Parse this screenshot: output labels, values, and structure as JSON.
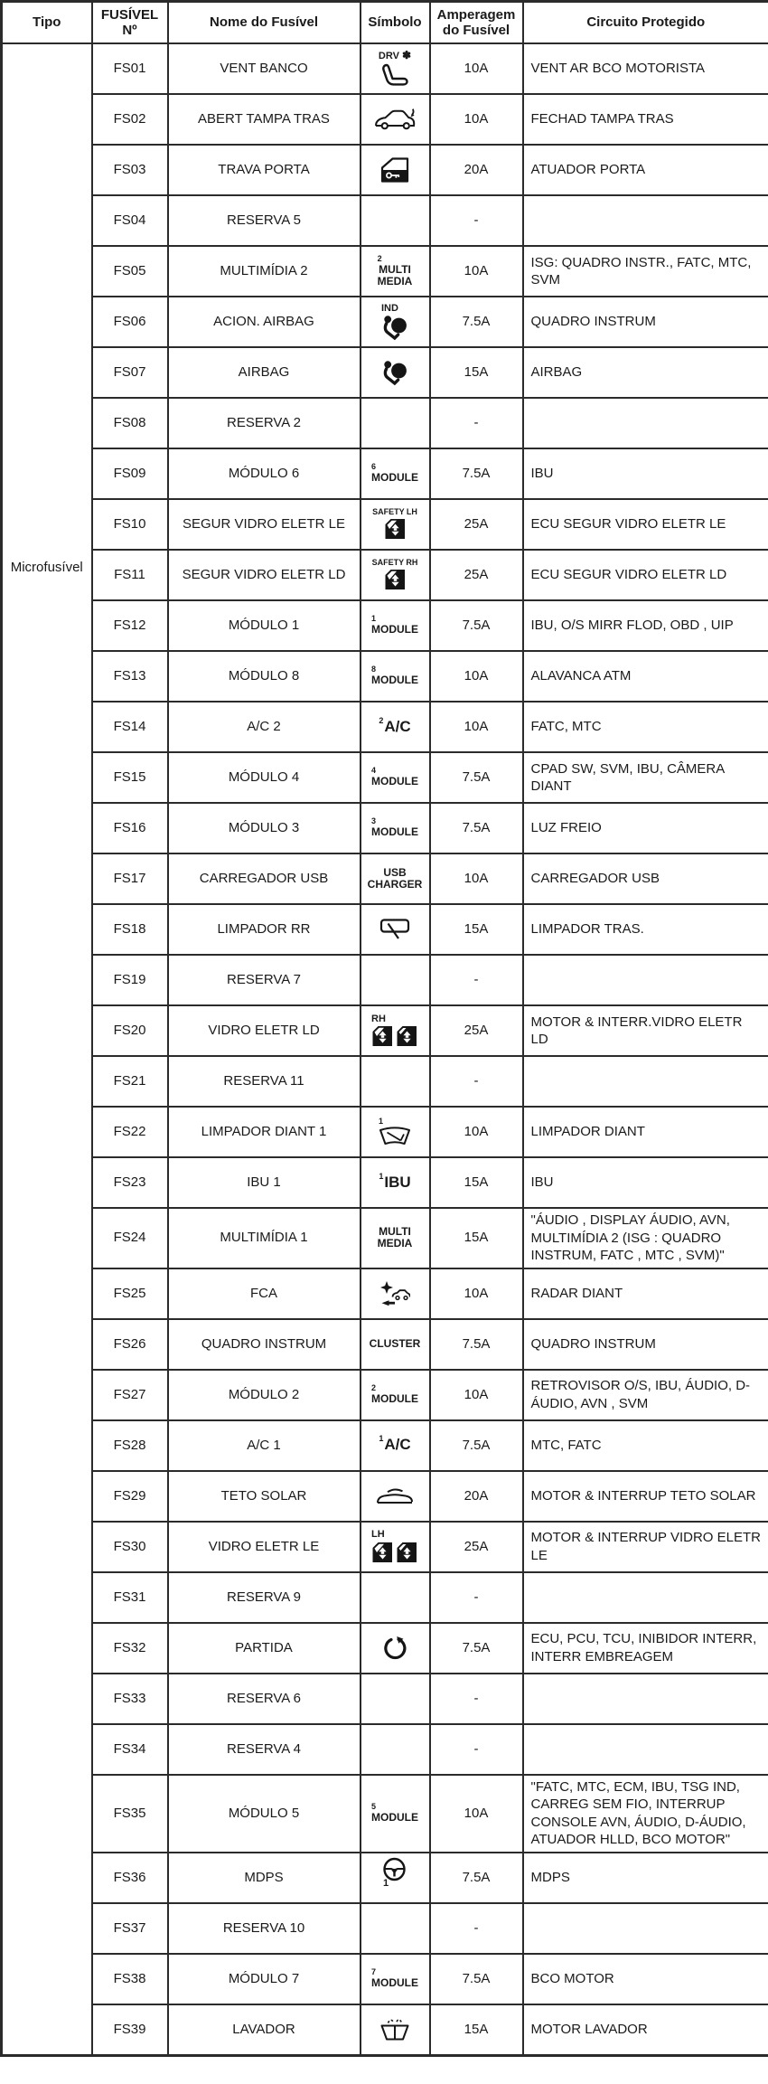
{
  "header": {
    "columns": [
      "Tipo",
      "FUSÍVEL Nº",
      "Nome do Fusível",
      "Símbolo",
      "Amperagem do Fusível",
      "Circuito Protegido"
    ]
  },
  "tipo_label": "Microfusível",
  "colors": {
    "border": "#2b2b2b",
    "text": "#1a1a1a",
    "icon": "#151515"
  },
  "rows": [
    {
      "fuse": "FS01",
      "name": "VENT BANCO",
      "symbol": {
        "icon": "seat-ventilation-icon",
        "label": "DRV",
        "fan": true
      },
      "amp": "10A",
      "circuit": "VENT AR BCO MOTORISTA"
    },
    {
      "fuse": "FS02",
      "name": "ABERT TAMPA TRAS",
      "symbol": {
        "icon": "tailgate-open-icon"
      },
      "amp": "10A",
      "circuit": "FECHAD TAMPA TRAS"
    },
    {
      "fuse": "FS03",
      "name": "TRAVA PORTA",
      "symbol": {
        "icon": "door-lock-icon"
      },
      "amp": "20A",
      "circuit": "ATUADOR PORTA"
    },
    {
      "fuse": "FS04",
      "name": "RESERVA 5",
      "symbol": null,
      "amp": "-",
      "circuit": ""
    },
    {
      "fuse": "FS05",
      "name": "MULTIMÍDIA 2",
      "symbol": {
        "sup": "2",
        "lines": [
          "MULTI",
          "MEDIA"
        ]
      },
      "amp": "10A",
      "circuit": "ISG: QUADRO INSTR., FATC, MTC, SVM"
    },
    {
      "fuse": "FS06",
      "name": "ACION. AIRBAG",
      "symbol": {
        "icon": "airbag-icon",
        "label": "IND"
      },
      "amp": "7.5A",
      "circuit": "QUADRO INSTRUM"
    },
    {
      "fuse": "FS07",
      "name": "AIRBAG",
      "symbol": {
        "icon": "airbag-icon"
      },
      "amp": "15A",
      "circuit": "AIRBAG"
    },
    {
      "fuse": "FS08",
      "name": "RESERVA 2",
      "symbol": null,
      "amp": "-",
      "circuit": ""
    },
    {
      "fuse": "FS09",
      "name": "MÓDULO 6",
      "symbol": {
        "sup": "6",
        "lines": [
          "MODULE"
        ]
      },
      "amp": "7.5A",
      "circuit": "IBU"
    },
    {
      "fuse": "FS10",
      "name": "SEGUR VIDRO ELETR LE",
      "symbol": {
        "icon": "window-safety-icon",
        "label": "SAFETY LH"
      },
      "amp": "25A",
      "circuit": "ECU SEGUR VIDRO ELETR LE"
    },
    {
      "fuse": "FS11",
      "name": "SEGUR VIDRO ELETR LD",
      "symbol": {
        "icon": "window-safety-icon",
        "label": "SAFETY RH"
      },
      "amp": "25A",
      "circuit": "ECU SEGUR VIDRO ELETR LD"
    },
    {
      "fuse": "FS12",
      "name": "MÓDULO 1",
      "symbol": {
        "sup": "1",
        "lines": [
          "MODULE"
        ]
      },
      "amp": "7.5A",
      "circuit": "IBU, O/S MIRR FLOD, OBD , UIP"
    },
    {
      "fuse": "FS13",
      "name": "MÓDULO 8",
      "symbol": {
        "sup": "8",
        "lines": [
          "MODULE"
        ]
      },
      "amp": "10A",
      "circuit": "ALAVANCA ATM"
    },
    {
      "fuse": "FS14",
      "name": "A/C 2",
      "symbol": {
        "sup": "2",
        "big": "A/C"
      },
      "amp": "10A",
      "circuit": "FATC, MTC"
    },
    {
      "fuse": "FS15",
      "name": "MÓDULO 4",
      "symbol": {
        "sup": "4",
        "lines": [
          "MODULE"
        ]
      },
      "amp": "7.5A",
      "circuit": "CPAD SW, SVM, IBU, CÂMERA DIANT"
    },
    {
      "fuse": "FS16",
      "name": "MÓDULO 3",
      "symbol": {
        "sup": "3",
        "lines": [
          "MODULE"
        ]
      },
      "amp": "7.5A",
      "circuit": "LUZ FREIO"
    },
    {
      "fuse": "FS17",
      "name": "CARREGADOR USB",
      "symbol": {
        "lines": [
          "USB",
          "CHARGER"
        ]
      },
      "amp": "10A",
      "circuit": "CARREGADOR USB"
    },
    {
      "fuse": "FS18",
      "name": "LIMPADOR RR",
      "symbol": {
        "icon": "rear-wiper-icon"
      },
      "amp": "15A",
      "circuit": "LIMPADOR TRAS."
    },
    {
      "fuse": "FS19",
      "name": "RESERVA 7",
      "symbol": null,
      "amp": "-",
      "circuit": ""
    },
    {
      "fuse": "FS20",
      "name": "VIDRO ELETR LD",
      "symbol": {
        "icon": "window-lift-pair-icon",
        "label": "RH"
      },
      "amp": "25A",
      "circuit": "MOTOR & INTERR.VIDRO ELETR LD"
    },
    {
      "fuse": "FS21",
      "name": "RESERVA 11",
      "symbol": null,
      "amp": "-",
      "circuit": ""
    },
    {
      "fuse": "FS22",
      "name": "LIMPADOR DIANT 1",
      "symbol": {
        "sup": "1",
        "icon": "front-wiper-icon"
      },
      "amp": "10A",
      "circuit": "LIMPADOR DIANT"
    },
    {
      "fuse": "FS23",
      "name": "IBU 1",
      "symbol": {
        "sup": "1",
        "big": "IBU"
      },
      "amp": "15A",
      "circuit": "IBU"
    },
    {
      "fuse": "FS24",
      "name": "MULTIMÍDIA 1",
      "symbol": {
        "lines": [
          "MULTI",
          "MEDIA"
        ]
      },
      "amp": "15A",
      "circuit": "\"ÁUDIO , DISPLAY ÁUDIO, AVN, MULTIMÍDIA 2 (ISG : QUADRO INSTRUM, FATC , MTC , SVM)\""
    },
    {
      "fuse": "FS25",
      "name": "FCA",
      "symbol": {
        "icon": "fca-collision-icon"
      },
      "amp": "10A",
      "circuit": "RADAR DIANT"
    },
    {
      "fuse": "FS26",
      "name": "QUADRO INSTRUM",
      "symbol": {
        "lines": [
          "CLUSTER"
        ]
      },
      "amp": "7.5A",
      "circuit": "QUADRO INSTRUM"
    },
    {
      "fuse": "FS27",
      "name": "MÓDULO 2",
      "symbol": {
        "sup": "2",
        "lines": [
          "MODULE"
        ]
      },
      "amp": "10A",
      "circuit": "RETROVISOR O/S, IBU, ÁUDIO, D-ÁUDIO, AVN , SVM"
    },
    {
      "fuse": "FS28",
      "name": "A/C 1",
      "symbol": {
        "sup": "1",
        "big": "A/C"
      },
      "amp": "7.5A",
      "circuit": "MTC, FATC"
    },
    {
      "fuse": "FS29",
      "name": "TETO SOLAR",
      "symbol": {
        "icon": "sunroof-icon"
      },
      "amp": "20A",
      "circuit": "MOTOR & INTERRUP TETO SOLAR"
    },
    {
      "fuse": "FS30",
      "name": "VIDRO ELETR LE",
      "symbol": {
        "icon": "window-lift-pair-icon",
        "label": "LH"
      },
      "amp": "25A",
      "circuit": "MOTOR & INTERRUP VIDRO ELETR LE"
    },
    {
      "fuse": "FS31",
      "name": "RESERVA 9",
      "symbol": null,
      "amp": "-",
      "circuit": ""
    },
    {
      "fuse": "FS32",
      "name": "PARTIDA",
      "symbol": {
        "icon": "engine-start-icon"
      },
      "amp": "7.5A",
      "circuit": "ECU, PCU, TCU, INIBIDOR INTERR, INTERR EMBREAGEM"
    },
    {
      "fuse": "FS33",
      "name": "RESERVA 6",
      "symbol": null,
      "amp": "-",
      "circuit": ""
    },
    {
      "fuse": "FS34",
      "name": "RESERVA 4",
      "symbol": null,
      "amp": "-",
      "circuit": ""
    },
    {
      "fuse": "FS35",
      "name": "MÓDULO 5",
      "symbol": {
        "sup": "5",
        "lines": [
          "MODULE"
        ]
      },
      "amp": "10A",
      "circuit": "\"FATC, MTC, ECM, IBU, TSG IND, CARREG SEM FIO, INTERRUP CONSOLE AVN, ÁUDIO, D-ÁUDIO, ATUADOR HLLD, BCO MOTOR\""
    },
    {
      "fuse": "FS36",
      "name": "MDPS",
      "symbol": {
        "icon": "steering-wheel-icon",
        "suffix": "1"
      },
      "amp": "7.5A",
      "circuit": "MDPS"
    },
    {
      "fuse": "FS37",
      "name": "RESERVA 10",
      "symbol": null,
      "amp": "-",
      "circuit": ""
    },
    {
      "fuse": "FS38",
      "name": "MÓDULO 7",
      "symbol": {
        "sup": "7",
        "lines": [
          "MODULE"
        ]
      },
      "amp": "7.5A",
      "circuit": "BCO MOTOR"
    },
    {
      "fuse": "FS39",
      "name": "LAVADOR",
      "symbol": {
        "icon": "washer-icon"
      },
      "amp": "15A",
      "circuit": "MOTOR LAVADOR"
    }
  ]
}
